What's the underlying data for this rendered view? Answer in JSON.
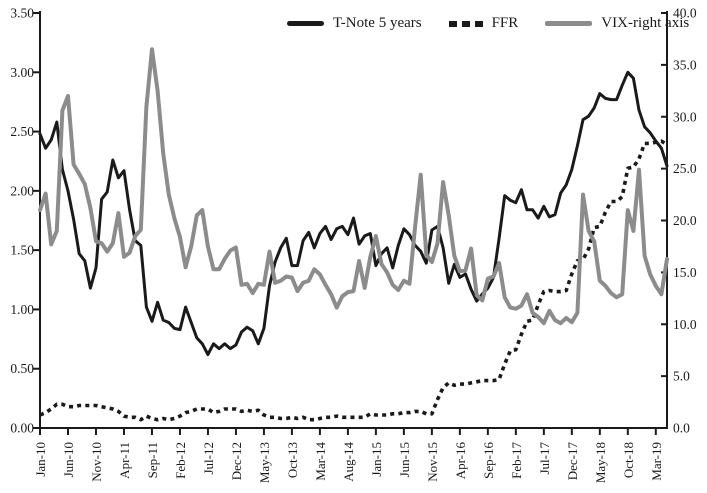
{
  "page_background": "#ffffff",
  "chart_data": {
    "type": "line",
    "title": "",
    "grid": false,
    "legend_position": "top-center",
    "x_axis": {
      "start": "Jan-10",
      "end": "May-19",
      "frequency": "monthly",
      "tick_every_n_months": 5,
      "tick_labels": [
        "Jan-10",
        "Jun-10",
        "Nov-10",
        "Apr-11",
        "Sep-11",
        "Feb-12",
        "Jul-12",
        "Dec-12",
        "May-13",
        "Oct-13",
        "Mar-14",
        "Aug-14",
        "Jan-15",
        "Jun-15",
        "Nov-15",
        "Apr-16",
        "Sep-16",
        "Feb-17",
        "Jul-17",
        "Dec-17",
        "May-18",
        "Oct-18",
        "Mar-19"
      ]
    },
    "y_axis_left": {
      "min": 0,
      "max": 3.5,
      "tick_labels": [
        "0.00",
        "0.50",
        "1.00",
        "1.50",
        "2.00",
        "2.50",
        "3.00",
        "3.50"
      ]
    },
    "y_axis_right": {
      "min": 0,
      "max": 40,
      "tick_labels": [
        "0.0",
        "5.0",
        "10.0",
        "15.0",
        "20.0",
        "25.0",
        "30.0",
        "35.0",
        "40.0"
      ]
    },
    "series": [
      {
        "name": "T-Note 5 years",
        "axis": "left",
        "style": "solid",
        "color": "#1a1a1a",
        "values": [
          2.48,
          2.36,
          2.43,
          2.58,
          2.18,
          2.0,
          1.76,
          1.47,
          1.41,
          1.18,
          1.35,
          1.93,
          1.99,
          2.26,
          2.11,
          2.17,
          1.84,
          1.58,
          1.54,
          1.02,
          0.9,
          1.06,
          0.91,
          0.89,
          0.84,
          0.83,
          1.02,
          0.89,
          0.76,
          0.71,
          0.62,
          0.71,
          0.67,
          0.71,
          0.67,
          0.7,
          0.81,
          0.85,
          0.82,
          0.71,
          0.84,
          1.2,
          1.4,
          1.52,
          1.6,
          1.37,
          1.37,
          1.58,
          1.65,
          1.52,
          1.64,
          1.7,
          1.59,
          1.68,
          1.7,
          1.63,
          1.77,
          1.55,
          1.62,
          1.64,
          1.37,
          1.47,
          1.52,
          1.35,
          1.54,
          1.68,
          1.63,
          1.54,
          1.49,
          1.39,
          1.67,
          1.7,
          1.52,
          1.22,
          1.38,
          1.27,
          1.3,
          1.17,
          1.07,
          1.13,
          1.18,
          1.27,
          1.6,
          1.96,
          1.92,
          1.9,
          2.01,
          1.84,
          1.84,
          1.77,
          1.87,
          1.78,
          1.8,
          1.98,
          2.05,
          2.18,
          2.38,
          2.6,
          2.63,
          2.7,
          2.82,
          2.78,
          2.77,
          2.77,
          2.89,
          3.0,
          2.95,
          2.68,
          2.54,
          2.49,
          2.42,
          2.36,
          2.21
        ]
      },
      {
        "name": "FFR",
        "axis": "left",
        "style": "dotted",
        "color": "#1a1a1a",
        "values": [
          0.11,
          0.13,
          0.16,
          0.2,
          0.2,
          0.18,
          0.18,
          0.19,
          0.19,
          0.19,
          0.19,
          0.18,
          0.17,
          0.16,
          0.14,
          0.1,
          0.09,
          0.09,
          0.07,
          0.1,
          0.08,
          0.07,
          0.08,
          0.07,
          0.08,
          0.1,
          0.13,
          0.14,
          0.16,
          0.16,
          0.16,
          0.13,
          0.14,
          0.16,
          0.16,
          0.16,
          0.14,
          0.15,
          0.14,
          0.15,
          0.11,
          0.09,
          0.09,
          0.08,
          0.08,
          0.09,
          0.08,
          0.09,
          0.07,
          0.07,
          0.08,
          0.09,
          0.09,
          0.1,
          0.09,
          0.09,
          0.09,
          0.09,
          0.09,
          0.12,
          0.11,
          0.11,
          0.11,
          0.12,
          0.12,
          0.13,
          0.13,
          0.14,
          0.14,
          0.12,
          0.12,
          0.24,
          0.34,
          0.38,
          0.36,
          0.37,
          0.37,
          0.38,
          0.39,
          0.4,
          0.4,
          0.4,
          0.41,
          0.54,
          0.65,
          0.66,
          0.79,
          0.9,
          0.91,
          1.04,
          1.15,
          1.16,
          1.15,
          1.15,
          1.16,
          1.3,
          1.41,
          1.42,
          1.51,
          1.69,
          1.7,
          1.82,
          1.91,
          1.91,
          1.95,
          2.19,
          2.2,
          2.27,
          2.4,
          2.4,
          2.41,
          2.42,
          2.39
        ]
      },
      {
        "name": "VIX-right axis",
        "axis": "right",
        "style": "solid",
        "color": "#8c8c8c",
        "values": [
          21.0,
          22.6,
          17.7,
          19.0,
          30.6,
          32.0,
          25.4,
          24.5,
          23.5,
          21.2,
          18.0,
          17.8,
          17.0,
          17.8,
          20.7,
          16.5,
          16.9,
          18.5,
          19.1,
          31.0,
          36.5,
          32.5,
          26.5,
          22.5,
          20.2,
          18.4,
          15.5,
          17.5,
          20.5,
          21.0,
          17.5,
          15.3,
          15.3,
          16.3,
          17.1,
          17.4,
          13.8,
          13.9,
          13.0,
          13.9,
          13.8,
          17.0,
          14.0,
          14.2,
          14.6,
          14.5,
          13.2,
          14.0,
          14.2,
          15.3,
          14.8,
          13.8,
          12.9,
          11.6,
          12.7,
          13.1,
          13.2,
          16.1,
          13.5,
          16.5,
          18.5,
          15.8,
          15.0,
          13.8,
          13.3,
          14.2,
          13.9,
          19.4,
          24.4,
          16.7,
          16.0,
          17.8,
          23.7,
          20.5,
          16.6,
          15.1,
          15.2,
          17.3,
          12.8,
          12.3,
          14.4,
          14.6,
          15.9,
          12.6,
          11.6,
          11.5,
          11.8,
          12.9,
          11.1,
          10.7,
          10.1,
          11.3,
          10.4,
          10.1,
          10.6,
          10.2,
          11.1,
          22.5,
          19.0,
          18.0,
          14.2,
          13.7,
          13.0,
          12.6,
          12.9,
          21.0,
          19.0,
          24.9,
          16.6,
          14.8,
          13.7,
          12.9,
          16.3
        ]
      }
    ]
  }
}
